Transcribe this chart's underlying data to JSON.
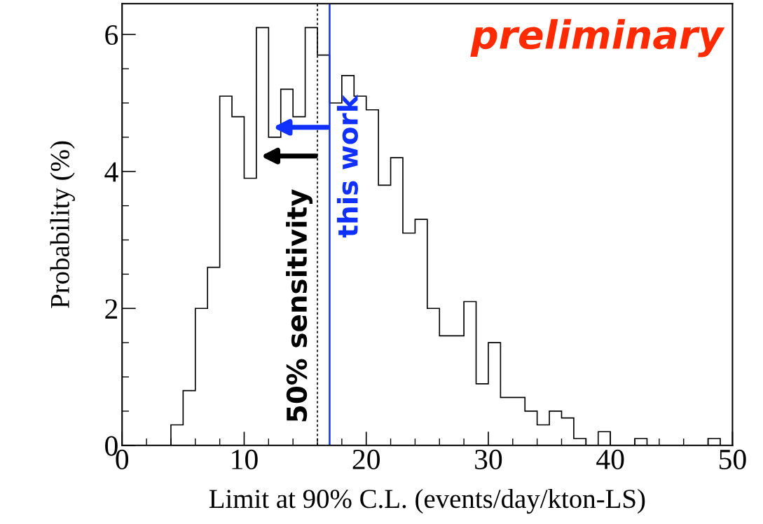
{
  "chart_data": {
    "type": "histogram",
    "xlabel": "Limit at 90% C.L. (events/day/kton-LS)",
    "ylabel": "Probability (%)",
    "bins": [
      0,
      1,
      2,
      3,
      4,
      5,
      6,
      7,
      8,
      9,
      10,
      11,
      12,
      13,
      14,
      15,
      16,
      17,
      18,
      19,
      20,
      21,
      22,
      23,
      24,
      25,
      26,
      27,
      28,
      29,
      30,
      31,
      32,
      33,
      34,
      35,
      36,
      37,
      38,
      39,
      40,
      41,
      42,
      43,
      44,
      45,
      46,
      47,
      48,
      49,
      50
    ],
    "values": [
      0,
      0,
      0,
      0,
      0.3,
      0.8,
      2.0,
      2.6,
      5.1,
      4.8,
      3.9,
      6.1,
      4.5,
      5.2,
      4.8,
      6.1,
      5.7,
      5.0,
      5.4,
      5.1,
      4.9,
      3.8,
      4.2,
      3.1,
      3.3,
      2.0,
      1.6,
      1.6,
      2.1,
      0.9,
      1.5,
      0.7,
      0.7,
      0.5,
      0.3,
      0.5,
      0.4,
      0.1,
      0,
      0.2,
      0,
      0,
      0.1,
      0,
      0,
      0,
      0,
      0,
      0.1,
      0
    ],
    "color": "#000000",
    "xlim": [
      0,
      50
    ],
    "xticks": [
      0,
      10,
      20,
      30,
      40,
      50
    ],
    "ylim": [
      0,
      6.45
    ],
    "yticks": [
      0,
      2,
      4,
      6
    ],
    "grid": false,
    "ref_lines": [
      {
        "axis": "x",
        "value": 16,
        "label": "50% sensitivity",
        "color": "#000000",
        "line_style": "dotted"
      },
      {
        "axis": "x",
        "value": 17,
        "label": "this work",
        "color": "#1030ff",
        "line_style": "solid"
      }
    ],
    "annotations": [
      "preliminary"
    ]
  }
}
